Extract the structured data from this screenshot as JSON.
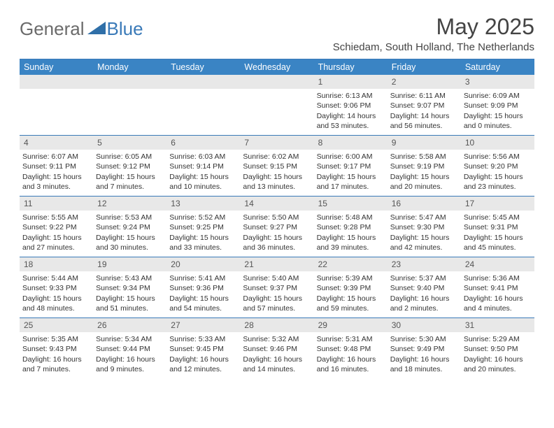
{
  "logo": {
    "general": "General",
    "blue": "Blue"
  },
  "title": "May 2025",
  "subtitle": "Schiedam, South Holland, The Netherlands",
  "colors": {
    "header_bg": "#3a84c4",
    "border": "#3a7ab8",
    "daynum_bg": "#e8e8e8",
    "text": "#333333",
    "logo_gray": "#6b6b6b",
    "logo_blue": "#3a7ab8"
  },
  "weekdays": [
    "Sunday",
    "Monday",
    "Tuesday",
    "Wednesday",
    "Thursday",
    "Friday",
    "Saturday"
  ],
  "weeks": [
    [
      null,
      null,
      null,
      null,
      {
        "n": "1",
        "sr": "6:13 AM",
        "ss": "9:06 PM",
        "dl": "14 hours and 53 minutes."
      },
      {
        "n": "2",
        "sr": "6:11 AM",
        "ss": "9:07 PM",
        "dl": "14 hours and 56 minutes."
      },
      {
        "n": "3",
        "sr": "6:09 AM",
        "ss": "9:09 PM",
        "dl": "15 hours and 0 minutes."
      }
    ],
    [
      {
        "n": "4",
        "sr": "6:07 AM",
        "ss": "9:11 PM",
        "dl": "15 hours and 3 minutes."
      },
      {
        "n": "5",
        "sr": "6:05 AM",
        "ss": "9:12 PM",
        "dl": "15 hours and 7 minutes."
      },
      {
        "n": "6",
        "sr": "6:03 AM",
        "ss": "9:14 PM",
        "dl": "15 hours and 10 minutes."
      },
      {
        "n": "7",
        "sr": "6:02 AM",
        "ss": "9:15 PM",
        "dl": "15 hours and 13 minutes."
      },
      {
        "n": "8",
        "sr": "6:00 AM",
        "ss": "9:17 PM",
        "dl": "15 hours and 17 minutes."
      },
      {
        "n": "9",
        "sr": "5:58 AM",
        "ss": "9:19 PM",
        "dl": "15 hours and 20 minutes."
      },
      {
        "n": "10",
        "sr": "5:56 AM",
        "ss": "9:20 PM",
        "dl": "15 hours and 23 minutes."
      }
    ],
    [
      {
        "n": "11",
        "sr": "5:55 AM",
        "ss": "9:22 PM",
        "dl": "15 hours and 27 minutes."
      },
      {
        "n": "12",
        "sr": "5:53 AM",
        "ss": "9:24 PM",
        "dl": "15 hours and 30 minutes."
      },
      {
        "n": "13",
        "sr": "5:52 AM",
        "ss": "9:25 PM",
        "dl": "15 hours and 33 minutes."
      },
      {
        "n": "14",
        "sr": "5:50 AM",
        "ss": "9:27 PM",
        "dl": "15 hours and 36 minutes."
      },
      {
        "n": "15",
        "sr": "5:48 AM",
        "ss": "9:28 PM",
        "dl": "15 hours and 39 minutes."
      },
      {
        "n": "16",
        "sr": "5:47 AM",
        "ss": "9:30 PM",
        "dl": "15 hours and 42 minutes."
      },
      {
        "n": "17",
        "sr": "5:45 AM",
        "ss": "9:31 PM",
        "dl": "15 hours and 45 minutes."
      }
    ],
    [
      {
        "n": "18",
        "sr": "5:44 AM",
        "ss": "9:33 PM",
        "dl": "15 hours and 48 minutes."
      },
      {
        "n": "19",
        "sr": "5:43 AM",
        "ss": "9:34 PM",
        "dl": "15 hours and 51 minutes."
      },
      {
        "n": "20",
        "sr": "5:41 AM",
        "ss": "9:36 PM",
        "dl": "15 hours and 54 minutes."
      },
      {
        "n": "21",
        "sr": "5:40 AM",
        "ss": "9:37 PM",
        "dl": "15 hours and 57 minutes."
      },
      {
        "n": "22",
        "sr": "5:39 AM",
        "ss": "9:39 PM",
        "dl": "15 hours and 59 minutes."
      },
      {
        "n": "23",
        "sr": "5:37 AM",
        "ss": "9:40 PM",
        "dl": "16 hours and 2 minutes."
      },
      {
        "n": "24",
        "sr": "5:36 AM",
        "ss": "9:41 PM",
        "dl": "16 hours and 4 minutes."
      }
    ],
    [
      {
        "n": "25",
        "sr": "5:35 AM",
        "ss": "9:43 PM",
        "dl": "16 hours and 7 minutes."
      },
      {
        "n": "26",
        "sr": "5:34 AM",
        "ss": "9:44 PM",
        "dl": "16 hours and 9 minutes."
      },
      {
        "n": "27",
        "sr": "5:33 AM",
        "ss": "9:45 PM",
        "dl": "16 hours and 12 minutes."
      },
      {
        "n": "28",
        "sr": "5:32 AM",
        "ss": "9:46 PM",
        "dl": "16 hours and 14 minutes."
      },
      {
        "n": "29",
        "sr": "5:31 AM",
        "ss": "9:48 PM",
        "dl": "16 hours and 16 minutes."
      },
      {
        "n": "30",
        "sr": "5:30 AM",
        "ss": "9:49 PM",
        "dl": "16 hours and 18 minutes."
      },
      {
        "n": "31",
        "sr": "5:29 AM",
        "ss": "9:50 PM",
        "dl": "16 hours and 20 minutes."
      }
    ]
  ],
  "labels": {
    "sunrise": "Sunrise: ",
    "sunset": "Sunset: ",
    "daylight": "Daylight: "
  }
}
